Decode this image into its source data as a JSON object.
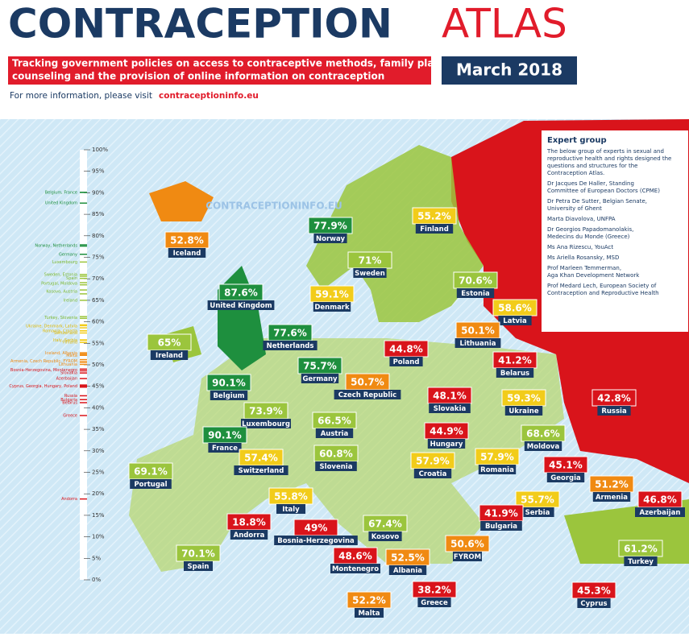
{
  "header": {
    "title_main": "CONTRACEPTION",
    "title_accent": "ATLAS",
    "subtitle_line1": "Tracking government policies on access to contraceptive methods, family planning",
    "subtitle_line2": "counseling and the provision of online information on contraception",
    "date": "March 2018",
    "info": "For more information, please visit",
    "link": "contraceptioninfo.eu"
  },
  "watermark": "CONTRACEPTIONINFO.EU",
  "scale": {
    "ticks": [
      {
        "value": 100,
        "label": "100%"
      },
      {
        "value": 95,
        "label": "95%"
      },
      {
        "value": 90,
        "label": "90%"
      },
      {
        "value": 85,
        "label": "85%"
      },
      {
        "value": 80,
        "label": "80%"
      },
      {
        "value": 75,
        "label": "75%"
      },
      {
        "value": 70,
        "label": "70%"
      },
      {
        "value": 65,
        "label": "65%"
      },
      {
        "value": 60,
        "label": "60%"
      },
      {
        "value": 55,
        "label": "55%"
      },
      {
        "value": 50,
        "label": "50%"
      },
      {
        "value": 45,
        "label": "45%"
      },
      {
        "value": 40,
        "label": "40%"
      },
      {
        "value": 35,
        "label": "35%"
      },
      {
        "value": 30,
        "label": "30%"
      },
      {
        "value": 25,
        "label": "25%"
      },
      {
        "value": 20,
        "label": "20%"
      },
      {
        "value": 15,
        "label": "15%"
      },
      {
        "value": 10,
        "label": "10%"
      },
      {
        "value": 5,
        "label": "5%"
      },
      {
        "value": 0,
        "label": "0%"
      }
    ],
    "labels": [
      {
        "text": "Belgium, France",
        "value": 90.1,
        "color": "#1e8f3e"
      },
      {
        "text": "United Kingdom",
        "value": 87.6,
        "color": "#1e8f3e"
      },
      {
        "text": "Norway, Netherlands",
        "value": 77.7,
        "color": "#1e8f3e"
      },
      {
        "text": "Germany",
        "value": 75.7,
        "color": "#1e8f3e"
      },
      {
        "text": "Luxembourg",
        "value": 73.9,
        "color": "#7cb82f"
      },
      {
        "text": "Sweden, Estonia",
        "value": 71,
        "color": "#7cb82f"
      },
      {
        "text": "Spain",
        "value": 70.1,
        "color": "#7cb82f"
      },
      {
        "text": "Portugal, Moldova",
        "value": 68.9,
        "color": "#7cb82f"
      },
      {
        "text": "Kosovo, Austria",
        "value": 67,
        "color": "#7cb82f"
      },
      {
        "text": "Ireland",
        "value": 65,
        "color": "#7cb82f"
      },
      {
        "text": "Turkey, Slovenia",
        "value": 61,
        "color": "#7cb82f"
      },
      {
        "text": "Ukraine, Denmark, Latvia",
        "value": 59,
        "color": "#e0b800"
      },
      {
        "text": "Romania, Croatia",
        "value": 57.9,
        "color": "#e0b800"
      },
      {
        "text": "Switzerland",
        "value": 57.4,
        "color": "#e0b800"
      },
      {
        "text": "Italy, Serbia",
        "value": 55.7,
        "color": "#e0b800"
      },
      {
        "text": "Finland",
        "value": 55.2,
        "color": "#e0b800"
      },
      {
        "text": "Iceland, Albania",
        "value": 52.7,
        "color": "#f08a12"
      },
      {
        "text": "Malta",
        "value": 52.2,
        "color": "#f08a12"
      },
      {
        "text": "Armenia, Czech Republic, FYROM",
        "value": 50.8,
        "color": "#f08a12"
      },
      {
        "text": "Lithuania",
        "value": 50.1,
        "color": "#f08a12"
      },
      {
        "text": "Bosnia-Herzegovina, Montenegro",
        "value": 48.8,
        "color": "#d9141b"
      },
      {
        "text": "Slovakia",
        "value": 48.1,
        "color": "#d9141b"
      },
      {
        "text": "Azerbaijan",
        "value": 46.8,
        "color": "#d9141b"
      },
      {
        "text": "Cyprus, Georgia, Hungary, Poland",
        "value": 45,
        "color": "#d9141b"
      },
      {
        "text": "Russia",
        "value": 42.8,
        "color": "#d9141b"
      },
      {
        "text": "Bulgaria",
        "value": 41.9,
        "color": "#d9141b"
      },
      {
        "text": "Belarus",
        "value": 41.2,
        "color": "#d9141b"
      },
      {
        "text": "Greece",
        "value": 38.2,
        "color": "#d9141b"
      },
      {
        "text": "Andorra",
        "value": 18.8,
        "color": "#d9141b"
      }
    ]
  },
  "countries": [
    {
      "name": "Iceland",
      "value": 52.8,
      "label": "52.8%",
      "color": "#f08a12"
    },
    {
      "name": "Norway",
      "value": 77.9,
      "label": "77.9%",
      "color": "#1e8f3e"
    },
    {
      "name": "United Kingdom",
      "value": 87.6,
      "label": "87.6%",
      "color": "#1e8f3e"
    },
    {
      "name": "Ireland",
      "value": 65,
      "label": "65%",
      "color": "#9bc53d"
    },
    {
      "name": "Netherlands",
      "value": 77.6,
      "label": "77.6%",
      "color": "#1e8f3e"
    },
    {
      "name": "Denmark",
      "value": 59.1,
      "label": "59.1%",
      "color": "#f2cc1a"
    },
    {
      "name": "Sweden",
      "value": 71,
      "label": "71%",
      "color": "#9bc53d"
    },
    {
      "name": "Finland",
      "value": 55.2,
      "label": "55.2%",
      "color": "#f2cc1a"
    },
    {
      "name": "Estonia",
      "value": 70.6,
      "label": "70.6%",
      "color": "#9bc53d"
    },
    {
      "name": "Latvia",
      "value": 58.6,
      "label": "58.6%",
      "color": "#f2cc1a"
    },
    {
      "name": "Lithuania",
      "value": 50.1,
      "label": "50.1%",
      "color": "#f08a12"
    },
    {
      "name": "Poland",
      "value": 44.8,
      "label": "44.8%",
      "color": "#d9141b"
    },
    {
      "name": "Belarus",
      "value": 41.2,
      "label": "41.2%",
      "color": "#d9141b"
    },
    {
      "name": "Germany",
      "value": 75.7,
      "label": "75.7%",
      "color": "#1e8f3e"
    },
    {
      "name": "Czech Republic",
      "value": 50.7,
      "label": "50.7%",
      "color": "#f08a12"
    },
    {
      "name": "Belgium",
      "value": 90.1,
      "label": "90.1%",
      "color": "#1e8f3e"
    },
    {
      "name": "Luxembourg",
      "value": 73.9,
      "label": "73.9%",
      "color": "#9bc53d"
    },
    {
      "name": "Slovakia",
      "value": 48.1,
      "label": "48.1%",
      "color": "#d9141b"
    },
    {
      "name": "Ukraine",
      "value": 59.3,
      "label": "59.3%",
      "color": "#f2cc1a"
    },
    {
      "name": "France",
      "value": 90.1,
      "label": "90.1%",
      "color": "#1e8f3e"
    },
    {
      "name": "Austria",
      "value": 66.5,
      "label": "66.5%",
      "color": "#9bc53d"
    },
    {
      "name": "Hungary",
      "value": 44.9,
      "label": "44.9%",
      "color": "#d9141b"
    },
    {
      "name": "Moldova",
      "value": 68.6,
      "label": "68.6%",
      "color": "#9bc53d"
    },
    {
      "name": "Switzerland",
      "value": 57.4,
      "label": "57.4%",
      "color": "#f2cc1a"
    },
    {
      "name": "Slovenia",
      "value": 60.8,
      "label": "60.8%",
      "color": "#9bc53d"
    },
    {
      "name": "Croatia",
      "value": 57.9,
      "label": "57.9%",
      "color": "#f2cc1a"
    },
    {
      "name": "Romania",
      "value": 57.9,
      "label": "57.9%",
      "color": "#f2cc1a"
    },
    {
      "name": "Portugal",
      "value": 69.1,
      "label": "69.1%",
      "color": "#9bc53d"
    },
    {
      "name": "Georgia",
      "value": 45.1,
      "label": "45.1%",
      "color": "#d9141b"
    },
    {
      "name": "Armenia",
      "value": 51.2,
      "label": "51.2%",
      "color": "#f08a12"
    },
    {
      "name": "Azerbaijan",
      "value": 46.8,
      "label": "46.8%",
      "color": "#d9141b"
    },
    {
      "name": "Italy",
      "value": 55.8,
      "label": "55.8%",
      "color": "#f2cc1a"
    },
    {
      "name": "Serbia",
      "value": 55.7,
      "label": "55.7%",
      "color": "#f2cc1a"
    },
    {
      "name": "Andorra",
      "value": 18.8,
      "label": "18.8%",
      "color": "#d9141b"
    },
    {
      "name": "Bosnia-Herzegovina",
      "value": 49,
      "label": "49%",
      "color": "#d9141b"
    },
    {
      "name": "Kosovo",
      "value": 67.4,
      "label": "67.4%",
      "color": "#9bc53d"
    },
    {
      "name": "Bulgaria",
      "value": 41.9,
      "label": "41.9%",
      "color": "#d9141b"
    },
    {
      "name": "Montenegro",
      "value": 48.6,
      "label": "48.6%",
      "color": "#d9141b"
    },
    {
      "name": "Albania",
      "value": 52.5,
      "label": "52.5%",
      "color": "#f08a12"
    },
    {
      "name": "FYROM",
      "value": 50.6,
      "label": "50.6%",
      "color": "#f08a12"
    },
    {
      "name": "Spain",
      "value": 70.1,
      "label": "70.1%",
      "color": "#9bc53d"
    },
    {
      "name": "Turkey",
      "value": 61.2,
      "label": "61.2%",
      "color": "#9bc53d"
    },
    {
      "name": "Greece",
      "value": 38.2,
      "label": "38.2%",
      "color": "#d9141b"
    },
    {
      "name": "Malta",
      "value": 52.2,
      "label": "52.2%",
      "color": "#f08a12"
    },
    {
      "name": "Cyprus",
      "value": 45.3,
      "label": "45.3%",
      "color": "#d9141b"
    },
    {
      "name": "Russia",
      "value": 42.8,
      "label": "42.8%",
      "color": "#d9141b"
    }
  ],
  "expert_group": {
    "title": "Expert group",
    "intro": [
      "The below group of experts in sexual and",
      "reproductive health and rights designed the",
      "questions and structures for the",
      "Contraception Atlas."
    ],
    "members": [
      [
        "Dr Jacques De Haller, Standing",
        "Committee of European Doctors (CPME)"
      ],
      [
        "Dr Petra De Sutter, Belgian Senate,",
        "University of Ghent"
      ],
      [
        "Marta Diavolova, UNFPA"
      ],
      [
        "Dr Georgios Papadomanolakis,",
        "Medecins du Monde (Greece)"
      ],
      [
        "Ms Ana Rizescu, YouAct"
      ],
      [
        "Ms Ariella Rosansky, MSD"
      ],
      [
        "Prof Marleen Temmerman,",
        "Aga Khan Development Network"
      ],
      [
        "Prof Medard Lech, European Society of",
        "Contraception and Reproductive Health"
      ]
    ]
  }
}
